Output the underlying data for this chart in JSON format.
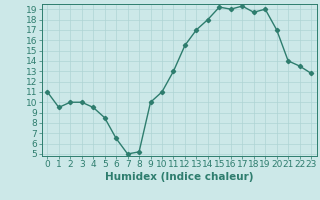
{
  "xlabel": "Humidex (Indice chaleur)",
  "x": [
    0,
    1,
    2,
    3,
    4,
    5,
    6,
    7,
    8,
    9,
    10,
    11,
    12,
    13,
    14,
    15,
    16,
    17,
    18,
    19,
    20,
    21,
    22,
    23
  ],
  "y": [
    11,
    9.5,
    10,
    10,
    9.5,
    8.5,
    6.5,
    5,
    5.2,
    10,
    11,
    13,
    15.5,
    17,
    18,
    19.2,
    19,
    19.3,
    18.7,
    19,
    17,
    14,
    13.5,
    12.8
  ],
  "ylim": [
    4.8,
    19.5
  ],
  "xlim": [
    -0.5,
    23.5
  ],
  "yticks": [
    5,
    6,
    7,
    8,
    9,
    10,
    11,
    12,
    13,
    14,
    15,
    16,
    17,
    18,
    19
  ],
  "xticks": [
    0,
    1,
    2,
    3,
    4,
    5,
    6,
    7,
    8,
    9,
    10,
    11,
    12,
    13,
    14,
    15,
    16,
    17,
    18,
    19,
    20,
    21,
    22,
    23
  ],
  "line_color": "#2e7d6e",
  "marker": "D",
  "marker_size": 2.2,
  "bg_color": "#cce8e8",
  "grid_color": "#afd4d4",
  "tick_label_fontsize": 6.5,
  "xlabel_fontsize": 7.5,
  "line_width": 1.0
}
